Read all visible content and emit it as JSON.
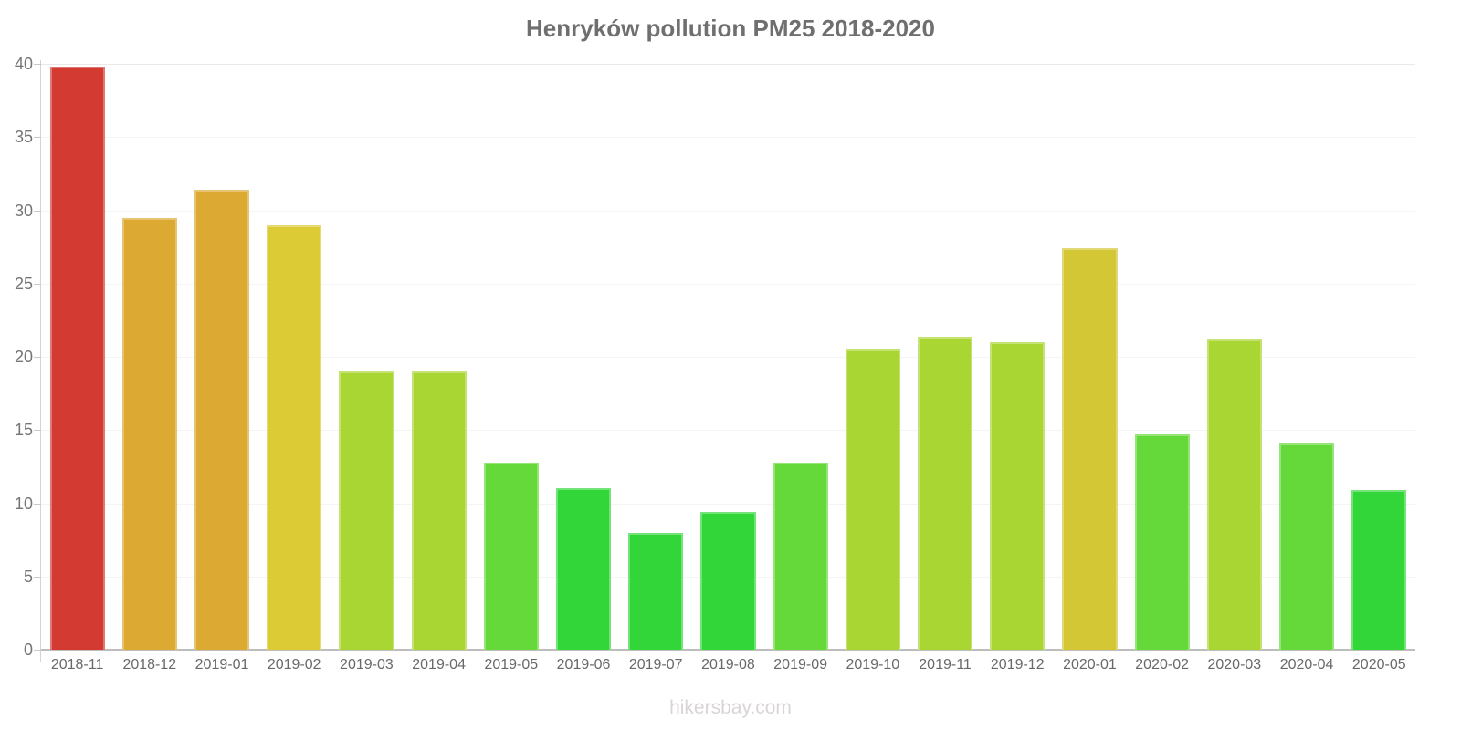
{
  "page": {
    "watermark": "hikersbay.com"
  },
  "chart_data": {
    "type": "bar",
    "title": "Henryków pollution PM25 2018-2020",
    "xlabel": "",
    "ylabel": "",
    "ylim": [
      0,
      40
    ],
    "yticks": [
      0,
      5,
      10,
      15,
      20,
      25,
      30,
      35,
      40
    ],
    "grid": "horizontal every 5, very light",
    "legend": "none",
    "categories": [
      "2018-11",
      "2018-12",
      "2019-01",
      "2019-02",
      "2019-03",
      "2019-04",
      "2019-05",
      "2019-06",
      "2019-07",
      "2019-08",
      "2019-09",
      "2019-10",
      "2019-11",
      "2019-12",
      "2020-01",
      "2020-02",
      "2020-03",
      "2020-04",
      "2020-05"
    ],
    "values": [
      39.8,
      29.5,
      31.4,
      29.0,
      19.0,
      19.0,
      12.8,
      11.0,
      8.0,
      9.4,
      12.8,
      20.5,
      21.4,
      21.0,
      27.4,
      14.7,
      21.2,
      14.1,
      10.9
    ],
    "bar_colors": [
      "#d23a32",
      "#dca933",
      "#dca933",
      "#dccb35",
      "#aad633",
      "#aad633",
      "#66d93a",
      "#33d639",
      "#33d639",
      "#33d639",
      "#66d93a",
      "#aad633",
      "#aad633",
      "#aad633",
      "#d4c735",
      "#66d93a",
      "#aad633",
      "#66d93a",
      "#33d639"
    ],
    "axis_colors": {
      "title_text": "#6f6f6f",
      "tick_text": "#757575",
      "x_axis_line": "#bdbdbd",
      "y_axis_line": "#d4d4d4",
      "gridline": "#f4f4f4"
    }
  }
}
